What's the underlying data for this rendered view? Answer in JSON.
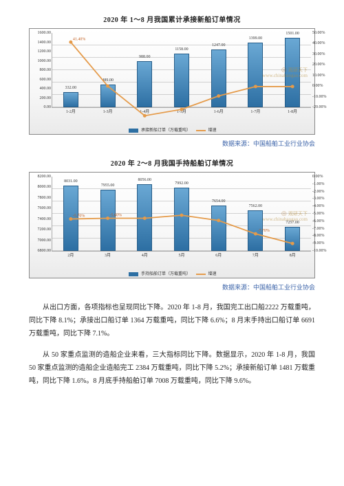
{
  "chart1": {
    "title": "2020 年 1～8 月我国累计承接新船订单情况",
    "type": "bar+line",
    "categories": [
      "1-2月",
      "1-3月",
      "1-4月",
      "1-5月",
      "1-6月",
      "1-7月",
      "1-8月"
    ],
    "bar_values": [
      332.0,
      489.0,
      988.0,
      1158.0,
      1247.0,
      1399.0,
      1501.0
    ],
    "bar_labels": [
      "332.00",
      "489.00",
      "988.00",
      "1158.00",
      "1247.00",
      "1399.00",
      "1501.00"
    ],
    "line_values": [
      41.4,
      0.0,
      -28.0,
      -22.0,
      -9.4,
      -0.5,
      -0.5
    ],
    "line_labels": [
      "41.40%",
      "",
      "",
      "",
      "",
      "",
      ""
    ],
    "y1_ticks": [
      0,
      200,
      400,
      600,
      800,
      1000,
      1200,
      1400,
      1600
    ],
    "y1_tick_labels": [
      "0.00",
      "200.00",
      "400.00",
      "600.00",
      "800.00",
      "1000.00",
      "1200.00",
      "1400.00",
      "1600.00"
    ],
    "y1_max": 1600,
    "y2_ticks": [
      -20,
      -10,
      0,
      10,
      20,
      30,
      40,
      50
    ],
    "y2_tick_labels": [
      "-20.00%",
      "-10.00%",
      "0.00%",
      "10.00%",
      "20.00%",
      "30.00%",
      "40.00%",
      "50.00%"
    ],
    "y2_min": -20,
    "y2_max": 50,
    "bar_color": "#2d6fa3",
    "line_color": "#e59b4a",
    "background": "#ffffff",
    "grid_color": "#c0c0c0",
    "legend_bar": "承接新船订单（万载重吨）",
    "legend_line": "增速",
    "watermark_a": "观研天下",
    "watermark_b": "www.chinabaogao.com"
  },
  "chart2": {
    "title": "2020 年 2～8 月我国手持船舶订单情况",
    "type": "bar+line",
    "categories": [
      "2月",
      "3月",
      "4月",
      "5月",
      "6月",
      "7月",
      "8月"
    ],
    "bar_values": [
      8031.0,
      7955.0,
      8056.0,
      7992.0,
      7654.0,
      7562.0,
      7257.0
    ],
    "bar_labels": [
      "8031.00",
      "7955.00",
      "8056.00",
      "7992.00",
      "7654.00",
      "7562.00",
      "7257.00"
    ],
    "line_values": [
      -5.7,
      -5.6,
      -5.6,
      -5.2,
      -5.9,
      -7.7,
      -9.0
    ],
    "line_labels": [
      "-5.70%",
      "-5.60%",
      "",
      "",
      "",
      "-7.70%",
      ""
    ],
    "y1_ticks": [
      6800,
      7000,
      7200,
      7400,
      7600,
      7800,
      8000,
      8200
    ],
    "y1_tick_labels": [
      "6800.00",
      "7000.00",
      "7200.00",
      "7400.00",
      "7600.00",
      "7800.00",
      "8000.00",
      "8200.00"
    ],
    "y1_min": 6800,
    "y1_max": 8200,
    "y2_ticks": [
      -10,
      -9,
      -8,
      -7,
      -6,
      -5,
      -4,
      -3,
      -2,
      -1,
      0
    ],
    "y2_tick_labels": [
      "-10.00%",
      "-9.00%",
      "-8.00%",
      "-7.00%",
      "-6.00%",
      "-5.00%",
      "-4.00%",
      "-3.00%",
      "-2.00%",
      "-1.00%",
      "0.00%"
    ],
    "y2_min": -10,
    "y2_max": 0,
    "bar_color": "#2d6fa3",
    "line_color": "#e59b4a",
    "legend_bar": "手持船舶订单（万载重吨）",
    "legend_line": "增速",
    "watermark_a": "观研天下",
    "watermark_b": "www.chinabaogao.com"
  },
  "source_text": "数据来源：中国船舶工业行业协会",
  "para1": "从出口方面，各项指标也呈现同比下降。2020 年 1-8 月，我国完工出口船2222 万载重吨，同比下降 8.1%；承接出口船订单 1364 万载重吨，同比下降 6.6%；8 月末手持出口船订单 6691 万载重吨，同比下降 7.1%。",
  "para2": "从 50 家重点监测的造船企业来看，三大指标同比下降。数据显示，2020 年 1-8 月，我国 50 家重点监测的造船企业造船完工 2384 万载重吨，同比下降 5.2%；承接新船订单 1481 万载重吨，同比下降 1.6%。8 月底手持船舶订单 7008 万载重吨，同比下降 9.6%。"
}
